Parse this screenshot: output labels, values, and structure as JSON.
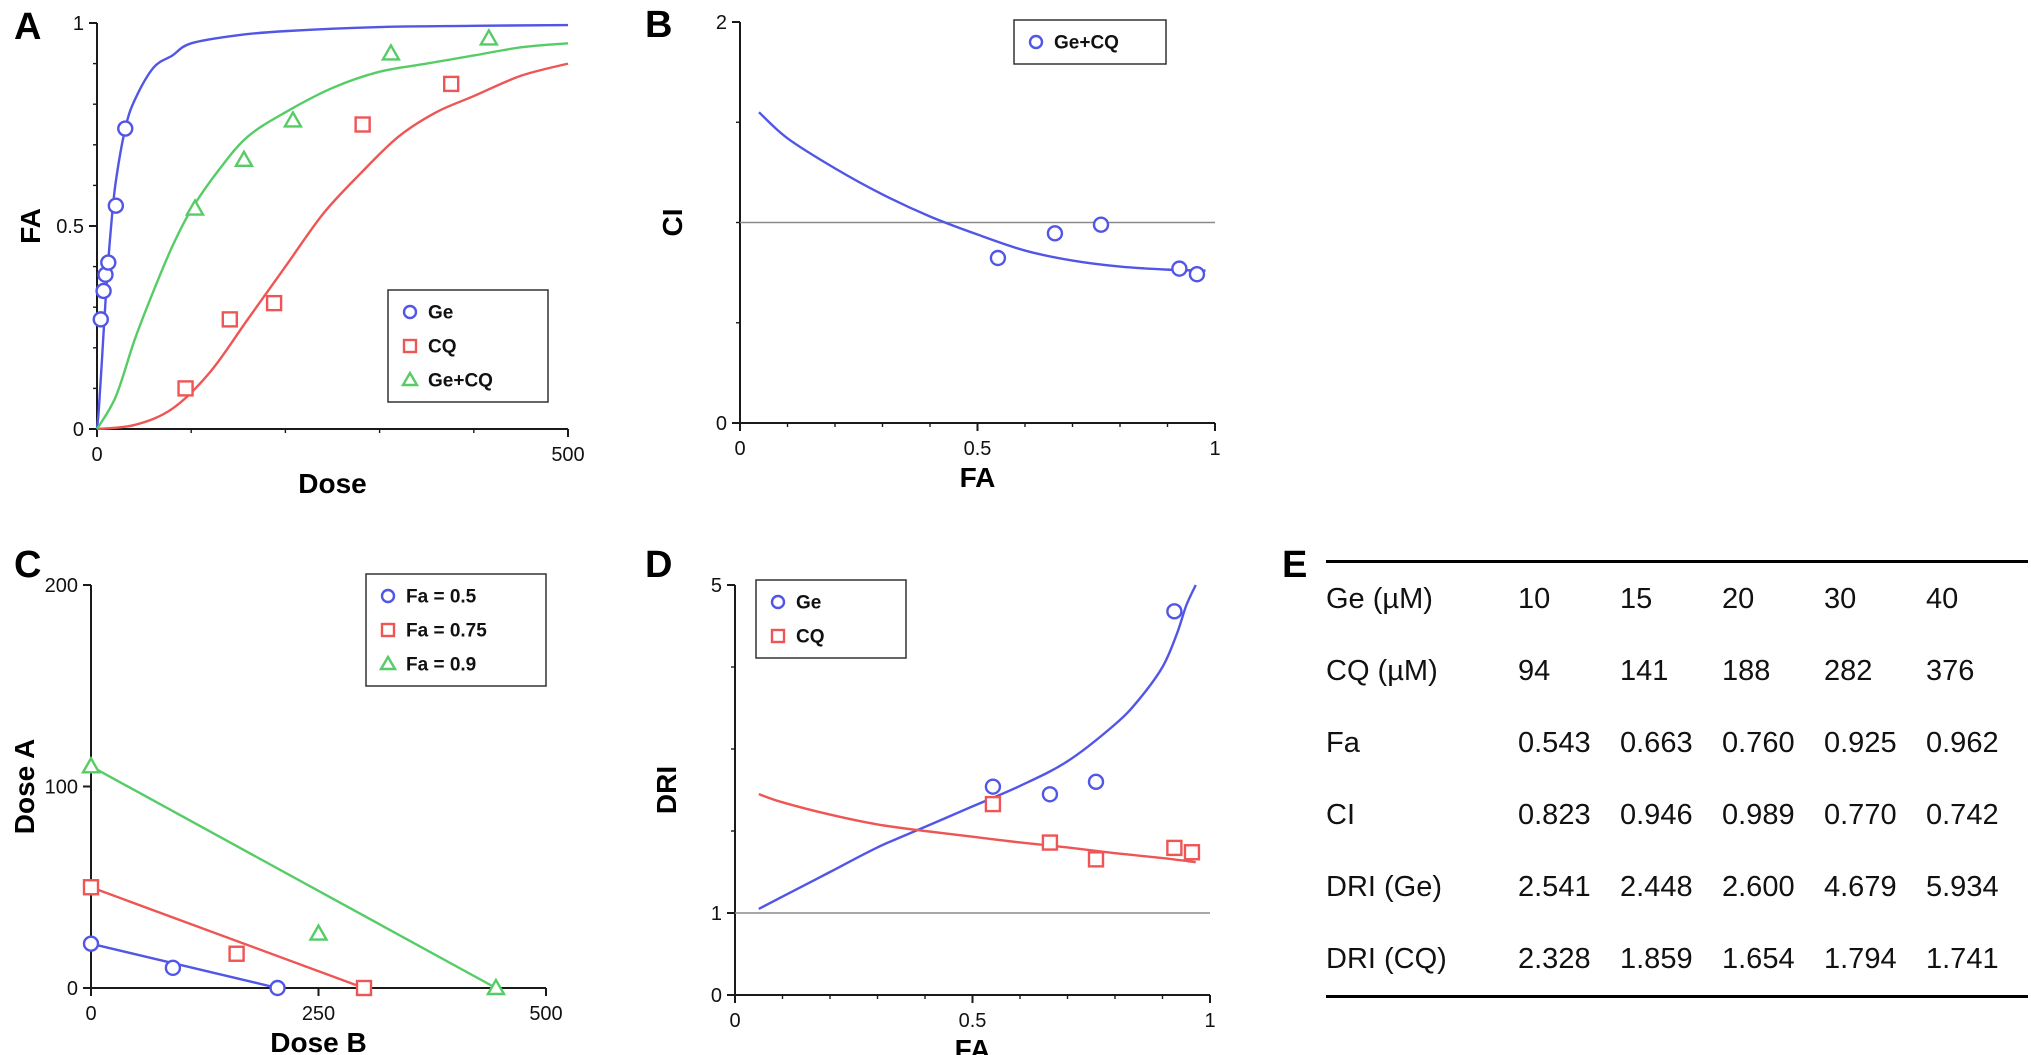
{
  "colors": {
    "blue": "#5156e6",
    "red": "#ee5555",
    "green": "#55cc66",
    "refline": "#8a8a8a",
    "axis": "#1a1a1a"
  },
  "chart_data": [
    {
      "id": "A",
      "panel_label": "A",
      "type": "line",
      "xlabel": "Dose",
      "ylabel": "FA",
      "xlim": [
        0,
        500
      ],
      "ylim": [
        0,
        1
      ],
      "xticks": [
        [
          0,
          "0"
        ],
        [
          500,
          "500"
        ]
      ],
      "xminor": [
        100,
        200,
        300,
        400
      ],
      "yticks": [
        [
          0,
          "0"
        ],
        [
          0.5,
          "0.5"
        ],
        [
          1,
          "1"
        ]
      ],
      "yminor": [
        0.1,
        0.2,
        0.3,
        0.4,
        0.6,
        0.7,
        0.8,
        0.9
      ],
      "legend_position": "inside-right-lower",
      "series": [
        {
          "name": "Ge",
          "marker": "circle",
          "color": "#5156e6",
          "points": [
            [
              4,
              0.27
            ],
            [
              7,
              0.34
            ],
            [
              9,
              0.38
            ],
            [
              12,
              0.41
            ],
            [
              20,
              0.55
            ],
            [
              30,
              0.74
            ]
          ],
          "curve": [
            [
              0,
              0
            ],
            [
              2,
              0.05
            ],
            [
              5,
              0.16
            ],
            [
              10,
              0.35
            ],
            [
              15,
              0.5
            ],
            [
              20,
              0.61
            ],
            [
              30,
              0.74
            ],
            [
              40,
              0.81
            ],
            [
              60,
              0.89
            ],
            [
              80,
              0.92
            ],
            [
              100,
              0.95
            ],
            [
              150,
              0.97
            ],
            [
              200,
              0.98
            ],
            [
              300,
              0.99
            ],
            [
              400,
              0.993
            ],
            [
              500,
              0.995
            ]
          ]
        },
        {
          "name": "CQ",
          "marker": "square",
          "color": "#ee5555",
          "points": [
            [
              94,
              0.1
            ],
            [
              141,
              0.27
            ],
            [
              188,
              0.31
            ],
            [
              282,
              0.75
            ],
            [
              376,
              0.85
            ]
          ],
          "curve": [
            [
              0,
              0
            ],
            [
              40,
              0.01
            ],
            [
              80,
              0.05
            ],
            [
              120,
              0.14
            ],
            [
              160,
              0.27
            ],
            [
              200,
              0.4
            ],
            [
              240,
              0.53
            ],
            [
              280,
              0.63
            ],
            [
              320,
              0.72
            ],
            [
              360,
              0.78
            ],
            [
              400,
              0.82
            ],
            [
              450,
              0.87
            ],
            [
              500,
              0.9
            ]
          ]
        },
        {
          "name": "Ge+CQ",
          "marker": "triangle",
          "color": "#55cc66",
          "points": [
            [
              104,
              0.543
            ],
            [
              156,
              0.663
            ],
            [
              208,
              0.76
            ],
            [
              312,
              0.925
            ],
            [
              416,
              0.962
            ]
          ],
          "curve": [
            [
              0,
              0
            ],
            [
              20,
              0.08
            ],
            [
              40,
              0.22
            ],
            [
              60,
              0.34
            ],
            [
              80,
              0.45
            ],
            [
              100,
              0.54
            ],
            [
              130,
              0.64
            ],
            [
              160,
              0.72
            ],
            [
              200,
              0.78
            ],
            [
              250,
              0.84
            ],
            [
              300,
              0.88
            ],
            [
              350,
              0.9
            ],
            [
              400,
              0.92
            ],
            [
              450,
              0.94
            ],
            [
              500,
              0.95
            ]
          ]
        }
      ]
    },
    {
      "id": "B",
      "panel_label": "B",
      "type": "line",
      "xlabel": "FA",
      "ylabel": "CI",
      "xlim": [
        0,
        1
      ],
      "ylim": [
        0,
        2
      ],
      "xticks": [
        [
          0,
          "0"
        ],
        [
          0.5,
          "0.5"
        ],
        [
          1,
          "1"
        ]
      ],
      "xminor": [
        0.1,
        0.2,
        0.3,
        0.4,
        0.6,
        0.7,
        0.8,
        0.9
      ],
      "yticks": [
        [
          0,
          "0"
        ],
        [
          2,
          "2"
        ]
      ],
      "yminor": [
        0.5,
        1,
        1.5
      ],
      "refline_y": 1,
      "legend_position": "top-center",
      "series": [
        {
          "name": "Ge+CQ",
          "marker": "circle",
          "color": "#5156e6",
          "points": [
            [
              0.543,
              0.823
            ],
            [
              0.663,
              0.946
            ],
            [
              0.76,
              0.989
            ],
            [
              0.925,
              0.77
            ],
            [
              0.962,
              0.742
            ]
          ],
          "curve": [
            [
              0.04,
              1.55
            ],
            [
              0.1,
              1.42
            ],
            [
              0.2,
              1.27
            ],
            [
              0.3,
              1.14
            ],
            [
              0.4,
              1.03
            ],
            [
              0.5,
              0.94
            ],
            [
              0.6,
              0.86
            ],
            [
              0.7,
              0.81
            ],
            [
              0.8,
              0.78
            ],
            [
              0.9,
              0.765
            ],
            [
              0.98,
              0.76
            ]
          ]
        }
      ]
    },
    {
      "id": "C",
      "panel_label": "C",
      "type": "line",
      "xlabel": "Dose B",
      "ylabel": "Dose A",
      "xlim": [
        0,
        500
      ],
      "ylim": [
        0,
        200
      ],
      "xticks": [
        [
          0,
          "0"
        ],
        [
          250,
          "250"
        ],
        [
          500,
          "500"
        ]
      ],
      "xminor": [],
      "yticks": [
        [
          0,
          "0"
        ],
        [
          100,
          "100"
        ],
        [
          200,
          "200"
        ]
      ],
      "yminor": [],
      "legend_position": "top-right",
      "series": [
        {
          "name": "Fa = 0.5",
          "marker": "circle",
          "color": "#5156e6",
          "points": [
            [
              0,
              22
            ],
            [
              90,
              10
            ],
            [
              205,
              0
            ]
          ],
          "curve": [
            [
              0,
              22
            ],
            [
              205,
              0
            ]
          ]
        },
        {
          "name": "Fa = 0.75",
          "marker": "square",
          "color": "#ee5555",
          "points": [
            [
              0,
              50
            ],
            [
              160,
              17
            ],
            [
              300,
              0
            ]
          ],
          "curve": [
            [
              0,
              50
            ],
            [
              300,
              0
            ]
          ]
        },
        {
          "name": "Fa = 0.9",
          "marker": "triangle",
          "color": "#55cc66",
          "points": [
            [
              0,
              110
            ],
            [
              250,
              27
            ],
            [
              445,
              0
            ]
          ],
          "curve": [
            [
              0,
              110
            ],
            [
              445,
              0
            ]
          ]
        }
      ]
    },
    {
      "id": "D",
      "panel_label": "D",
      "type": "line",
      "xlabel": "FA",
      "ylabel": "DRI",
      "xlim": [
        0,
        1
      ],
      "ylim": [
        0,
        5
      ],
      "xticks": [
        [
          0,
          "0"
        ],
        [
          0.5,
          "0.5"
        ],
        [
          1,
          "1"
        ]
      ],
      "xminor": [
        0.1,
        0.2,
        0.3,
        0.4,
        0.6,
        0.7,
        0.8,
        0.9
      ],
      "yticks": [
        [
          0,
          "0"
        ],
        [
          1,
          "1"
        ],
        [
          5,
          "5"
        ]
      ],
      "yminor": [
        2,
        3,
        4
      ],
      "refline_y": 1,
      "legend_position": "top-left",
      "series": [
        {
          "name": "Ge",
          "marker": "circle",
          "color": "#5156e6",
          "points": [
            [
              0.543,
              2.541
            ],
            [
              0.663,
              2.448
            ],
            [
              0.76,
              2.6
            ],
            [
              0.925,
              4.679
            ],
            [
              0.962,
              5.934
            ]
          ],
          "curve": [
            [
              0.05,
              1.05
            ],
            [
              0.1,
              1.2
            ],
            [
              0.2,
              1.5
            ],
            [
              0.3,
              1.8
            ],
            [
              0.4,
              2.05
            ],
            [
              0.5,
              2.3
            ],
            [
              0.6,
              2.55
            ],
            [
              0.7,
              2.85
            ],
            [
              0.8,
              3.3
            ],
            [
              0.85,
              3.6
            ],
            [
              0.9,
              4.0
            ],
            [
              0.93,
              4.4
            ],
            [
              0.95,
              4.75
            ],
            [
              0.97,
              5.0
            ]
          ]
        },
        {
          "name": "CQ",
          "marker": "square",
          "color": "#ee5555",
          "points": [
            [
              0.543,
              2.328
            ],
            [
              0.663,
              1.859
            ],
            [
              0.76,
              1.654
            ],
            [
              0.925,
              1.794
            ],
            [
              0.962,
              1.741
            ]
          ],
          "curve": [
            [
              0.05,
              2.45
            ],
            [
              0.1,
              2.35
            ],
            [
              0.2,
              2.2
            ],
            [
              0.3,
              2.08
            ],
            [
              0.4,
              2.0
            ],
            [
              0.5,
              1.93
            ],
            [
              0.6,
              1.86
            ],
            [
              0.7,
              1.8
            ],
            [
              0.8,
              1.73
            ],
            [
              0.9,
              1.67
            ],
            [
              0.97,
              1.62
            ]
          ]
        }
      ]
    }
  ],
  "table": {
    "panel_label": "E",
    "rows": [
      {
        "label": "Ge (µM)",
        "values": [
          "10",
          "15",
          "20",
          "30",
          "40"
        ]
      },
      {
        "label": "CQ (µM)",
        "values": [
          "94",
          "141",
          "188",
          "282",
          "376"
        ]
      },
      {
        "label": "Fa",
        "values": [
          "0.543",
          "0.663",
          "0.760",
          "0.925",
          "0.962"
        ]
      },
      {
        "label": "CI",
        "values": [
          "0.823",
          "0.946",
          "0.989",
          "0.770",
          "0.742"
        ]
      },
      {
        "label": "DRI (Ge)",
        "values": [
          "2.541",
          "2.448",
          "2.600",
          "4.679",
          "5.934"
        ]
      },
      {
        "label": "DRI (CQ)",
        "values": [
          "2.328",
          "1.859",
          "1.654",
          "1.794",
          "1.741"
        ]
      }
    ]
  }
}
